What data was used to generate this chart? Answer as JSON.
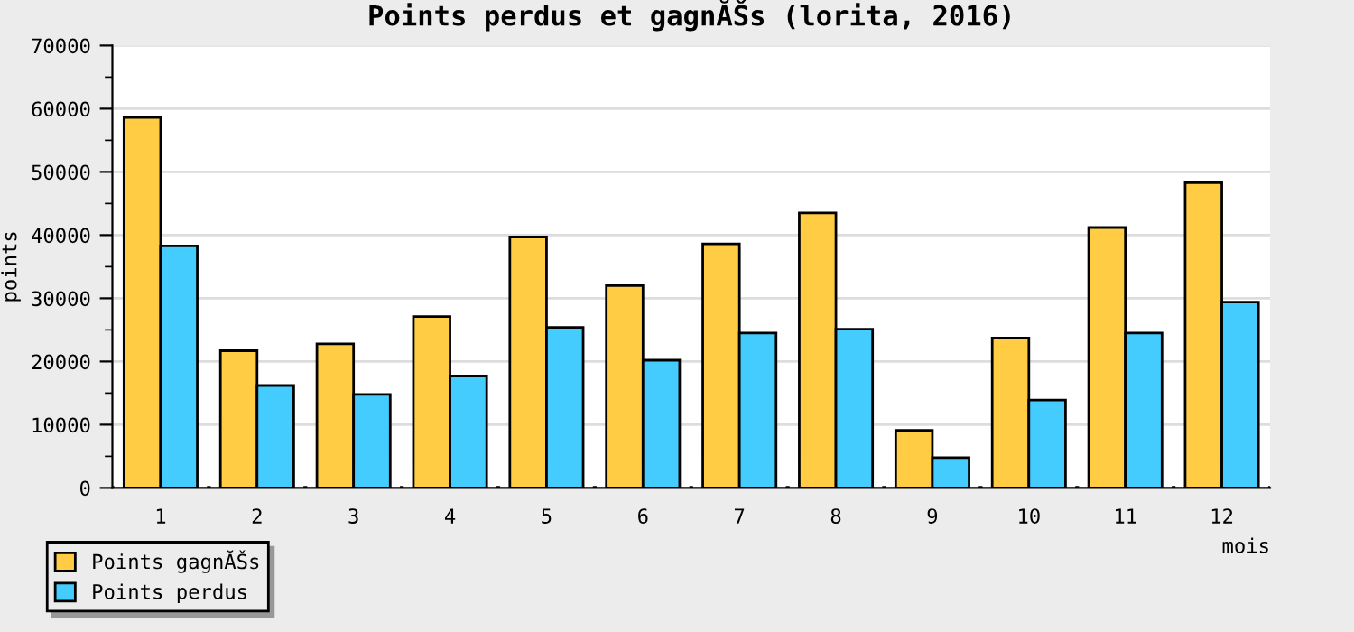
{
  "chart_data": {
    "type": "bar",
    "title": "Points perdus et gagnĂŠs (lorita, 2016)",
    "xlabel": "mois",
    "ylabel": "points",
    "categories": [
      "1",
      "2",
      "3",
      "4",
      "5",
      "6",
      "7",
      "8",
      "9",
      "10",
      "11",
      "12"
    ],
    "series": [
      {
        "name": "Points gagnĂŠs",
        "color": "#ffcc44",
        "values": [
          58600,
          21700,
          22800,
          27100,
          39700,
          32000,
          38600,
          43500,
          9100,
          23700,
          41200,
          48300
        ]
      },
      {
        "name": "Points perdus",
        "color": "#44ccff",
        "values": [
          38300,
          16200,
          14800,
          17700,
          25400,
          20200,
          24500,
          25100,
          4800,
          13900,
          24500,
          29400
        ]
      }
    ],
    "ylim": [
      0,
      70000
    ],
    "yticks": [
      0,
      {
        "value": 5000,
        "label": null
      },
      10000,
      {
        "value": 15000,
        "label": null
      },
      20000,
      {
        "value": 25000,
        "label": null
      },
      30000,
      {
        "value": 35000,
        "label": null
      },
      40000,
      {
        "value": 45000,
        "label": null
      },
      50000,
      {
        "value": 55000,
        "label": null
      },
      60000,
      {
        "value": 65000,
        "label": null
      },
      70000
    ],
    "grid": "y",
    "legend": "bottom left"
  }
}
